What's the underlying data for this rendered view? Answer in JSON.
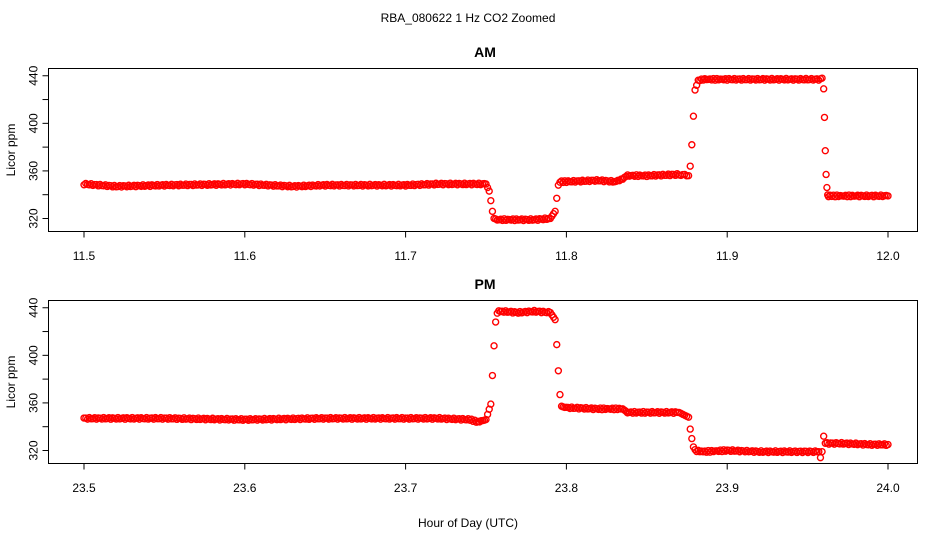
{
  "figure": {
    "title": "RBA_080622  1 Hz CO2 Zoomed",
    "xlabel": "Hour of Day (UTC)"
  },
  "chart_data": [
    {
      "type": "scatter",
      "title": "AM",
      "ylabel": "Licor ppm",
      "xlim": [
        11.5,
        12.0
      ],
      "ylim": [
        312,
        444
      ],
      "xticks": [
        11.5,
        11.6,
        11.7,
        11.8,
        11.9,
        12.0
      ],
      "xtick_labels": [
        "11.5",
        "11.6",
        "11.7",
        "11.8",
        "11.9",
        "12.0"
      ],
      "yticks": [
        320,
        360,
        400,
        440
      ],
      "ytick_labels": [
        "320",
        "360",
        "400",
        "440"
      ],
      "grid": false,
      "marker": "open circle",
      "color": "#ff0000",
      "series": [
        {
          "x": [
            11.5,
            11.52,
            11.55,
            11.6,
            11.63,
            11.65,
            11.7,
            11.72,
            11.75,
            11.752,
            11.753,
            11.754,
            11.755,
            11.757,
            11.77,
            11.78,
            11.79,
            11.793,
            11.794,
            11.795,
            11.796,
            11.797,
            11.8,
            11.82,
            11.83,
            11.835,
            11.837,
            11.85,
            11.87,
            11.876,
            11.877,
            11.878,
            11.879,
            11.88,
            11.882,
            11.885,
            11.9,
            11.92,
            11.94,
            11.958,
            11.959,
            11.96,
            11.9605,
            11.961,
            11.9615,
            11.962,
            11.9625,
            11.963,
            11.965,
            11.98,
            12.0
          ],
          "y": [
            349,
            347,
            348,
            349,
            347,
            348,
            348,
            349,
            349,
            343,
            335,
            326,
            320,
            319,
            319,
            319,
            320,
            326,
            337,
            348,
            351,
            351,
            351,
            352,
            351,
            353,
            356,
            356,
            357,
            356,
            364,
            382,
            406,
            428,
            436,
            437,
            437,
            437,
            437,
            437,
            438,
            429,
            405,
            377,
            357,
            346,
            340,
            339,
            339,
            339,
            339
          ]
        }
      ]
    },
    {
      "type": "scatter",
      "title": "PM",
      "ylabel": "Licor ppm",
      "xlim": [
        23.5,
        24.0
      ],
      "ylim": [
        312,
        444
      ],
      "xticks": [
        23.5,
        23.6,
        23.7,
        23.8,
        23.9,
        24.0
      ],
      "xtick_labels": [
        "23.5",
        "23.6",
        "23.7",
        "23.8",
        "23.9",
        "24.0"
      ],
      "yticks": [
        320,
        360,
        400,
        440
      ],
      "ytick_labels": [
        "320",
        "360",
        "400",
        "440"
      ],
      "grid": false,
      "marker": "open circle",
      "color": "#ff0000",
      "series": [
        {
          "x": [
            23.5,
            23.55,
            23.6,
            23.65,
            23.7,
            23.72,
            23.74,
            23.745,
            23.75,
            23.753,
            23.754,
            23.755,
            23.756,
            23.757,
            23.758,
            23.76,
            23.77,
            23.78,
            23.79,
            23.793,
            23.794,
            23.795,
            23.796,
            23.797,
            23.8,
            23.82,
            23.835,
            23.838,
            23.85,
            23.87,
            23.876,
            23.877,
            23.878,
            23.879,
            23.88,
            23.885,
            23.9,
            23.92,
            23.94,
            23.957,
            23.958,
            23.959,
            23.96,
            23.961,
            23.97,
            23.99,
            24.0
          ],
          "y": [
            347,
            347,
            346,
            347,
            347,
            347,
            346,
            344,
            346,
            359,
            383,
            408,
            428,
            436,
            437,
            437,
            436,
            437,
            436,
            430,
            409,
            387,
            367,
            357,
            356,
            355,
            355,
            352,
            352,
            352,
            348,
            338,
            330,
            323,
            320,
            319,
            320,
            319,
            319,
            319,
            314,
            319,
            332,
            326,
            326,
            325,
            325
          ]
        }
      ]
    }
  ]
}
